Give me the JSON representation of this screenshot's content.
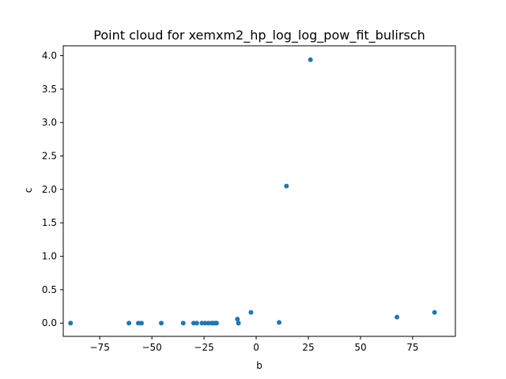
{
  "chart_data": {
    "type": "scatter",
    "title": "Point cloud for xemxm2_hp_log_log_pow_fit_bulirsch",
    "xlabel": "b",
    "ylabel": "c",
    "xlim": [
      -92.5,
      95.5
    ],
    "ylim": [
      -0.198,
      4.148
    ],
    "xticks": [
      -75,
      -50,
      -25,
      0,
      25,
      50,
      75
    ],
    "xtick_labels": [
      "−75",
      "−50",
      "−25",
      "0",
      "25",
      "50",
      "75"
    ],
    "yticks": [
      0.0,
      0.5,
      1.0,
      1.5,
      2.0,
      2.5,
      3.0,
      3.5,
      4.0
    ],
    "ytick_labels": [
      "0.0",
      "0.5",
      "1.0",
      "1.5",
      "2.0",
      "2.5",
      "3.0",
      "3.5",
      "4.0"
    ],
    "grid": false,
    "marker_color": "#1f77b4",
    "points": [
      {
        "x": -89.0,
        "y": 0.0
      },
      {
        "x": -61.0,
        "y": 0.0
      },
      {
        "x": -56.5,
        "y": 0.0
      },
      {
        "x": -55.0,
        "y": 0.0
      },
      {
        "x": -45.5,
        "y": 0.0
      },
      {
        "x": -35.0,
        "y": 0.0
      },
      {
        "x": -30.0,
        "y": 0.0
      },
      {
        "x": -28.5,
        "y": 0.0
      },
      {
        "x": -26.0,
        "y": 0.0
      },
      {
        "x": -24.5,
        "y": 0.0
      },
      {
        "x": -23.0,
        "y": 0.0
      },
      {
        "x": -21.5,
        "y": 0.0
      },
      {
        "x": -20.5,
        "y": 0.0
      },
      {
        "x": -19.5,
        "y": 0.0
      },
      {
        "x": -19.0,
        "y": 0.0
      },
      {
        "x": -9.0,
        "y": 0.06
      },
      {
        "x": -8.5,
        "y": 0.0
      },
      {
        "x": -2.5,
        "y": 0.16
      },
      {
        "x": 11.0,
        "y": 0.01
      },
      {
        "x": 14.5,
        "y": 2.05
      },
      {
        "x": 26.0,
        "y": 3.94
      },
      {
        "x": 67.5,
        "y": 0.09
      },
      {
        "x": 85.5,
        "y": 0.16
      }
    ]
  }
}
